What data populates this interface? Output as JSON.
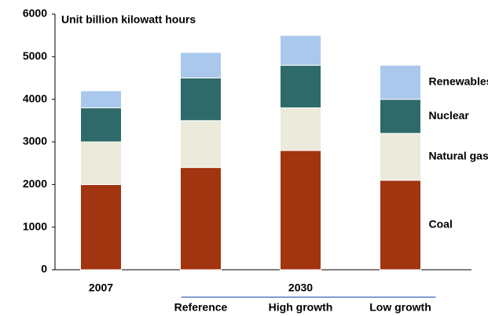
{
  "chart_data": {
    "type": "stacked-bar",
    "annotation": "Unit billion kilowatt hours",
    "categories": [
      "2007",
      "Reference",
      "High growth",
      "Low growth"
    ],
    "group_label": "2030",
    "series": [
      {
        "name": "Coal",
        "color": "#a23410",
        "values": [
          2000,
          2400,
          2800,
          2100
        ]
      },
      {
        "name": "Natural gas",
        "color": "#ebeadb",
        "values": [
          1000,
          1100,
          1000,
          1100
        ]
      },
      {
        "name": "Nuclear",
        "color": "#2f6a6a",
        "values": [
          800,
          1000,
          1000,
          800
        ]
      },
      {
        "name": "Renewables",
        "color": "#a9c8ec",
        "values": [
          400,
          600,
          700,
          800
        ]
      }
    ],
    "ylim": [
      0,
      6000
    ],
    "yticks": [
      0,
      1000,
      2000,
      3000,
      4000,
      5000,
      6000
    ],
    "grid": false
  }
}
